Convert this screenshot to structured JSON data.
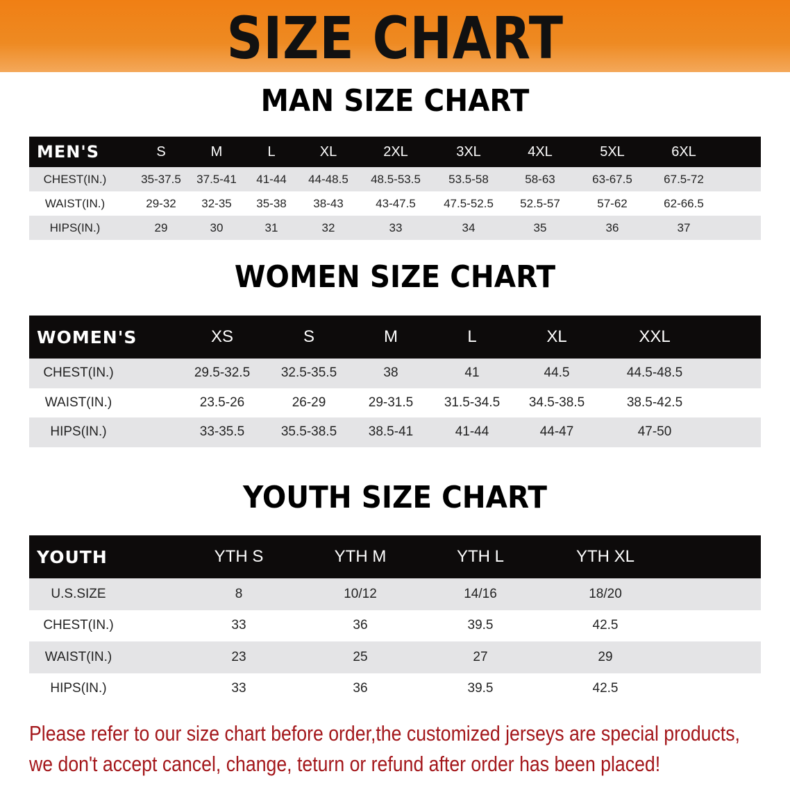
{
  "title": "SIZE CHART",
  "colors": {
    "banner": "#f08a1e",
    "header_bg": "#0d0b0b",
    "row_gray": "#e4e4e6",
    "note_text": "#a3161a"
  },
  "men": {
    "section_title": "MAN SIZE CHART",
    "header": [
      "MEN'S",
      "S",
      "M",
      "L",
      "XL",
      "2XL",
      "3XL",
      "4XL",
      "5XL",
      "6XL"
    ],
    "rows": [
      [
        "CHEST(IN.)",
        "35-37.5",
        "37.5-41",
        "41-44",
        "44-48.5",
        "48.5-53.5",
        "53.5-58",
        "58-63",
        "63-67.5",
        "67.5-72"
      ],
      [
        "WAIST(IN.)",
        "29-32",
        "32-35",
        "35-38",
        "38-43",
        "43-47.5",
        "47.5-52.5",
        "52.5-57",
        "57-62",
        "62-66.5"
      ],
      [
        "HIPS(IN.)",
        "29",
        "30",
        "31",
        "32",
        "33",
        "34",
        "35",
        "36",
        "37"
      ]
    ]
  },
  "women": {
    "section_title": "WOMEN SIZE CHART",
    "header": [
      "WOMEN'S",
      "XS",
      "S",
      "M",
      "L",
      "XL",
      "XXL"
    ],
    "rows": [
      [
        "CHEST(IN.)",
        "29.5-32.5",
        "32.5-35.5",
        "38",
        "41",
        "44.5",
        "44.5-48.5"
      ],
      [
        "WAIST(IN.)",
        "23.5-26",
        "26-29",
        "29-31.5",
        "31.5-34.5",
        "34.5-38.5",
        "38.5-42.5"
      ],
      [
        "HIPS(IN.)",
        "33-35.5",
        "35.5-38.5",
        "38.5-41",
        "41-44",
        "44-47",
        "47-50"
      ]
    ]
  },
  "youth": {
    "section_title": "YOUTH SIZE CHART",
    "header": [
      "YOUTH",
      "YTH S",
      "YTH M",
      "YTH L",
      "YTH XL"
    ],
    "rows": [
      [
        "U.S.SIZE",
        "8",
        "10/12",
        "14/16",
        "18/20"
      ],
      [
        "CHEST(IN.)",
        "33",
        "36",
        "39.5",
        "42.5"
      ],
      [
        "WAIST(IN.)",
        "23",
        "25",
        "27",
        "29"
      ],
      [
        "HIPS(IN.)",
        "33",
        "36",
        "39.5",
        "42.5"
      ]
    ]
  },
  "note": {
    "line1": "Please refer to our size chart before order,the customized jerseys are special products,",
    "line2": "we don't accept cancel, change, teturn or refund after order has been placed!"
  }
}
